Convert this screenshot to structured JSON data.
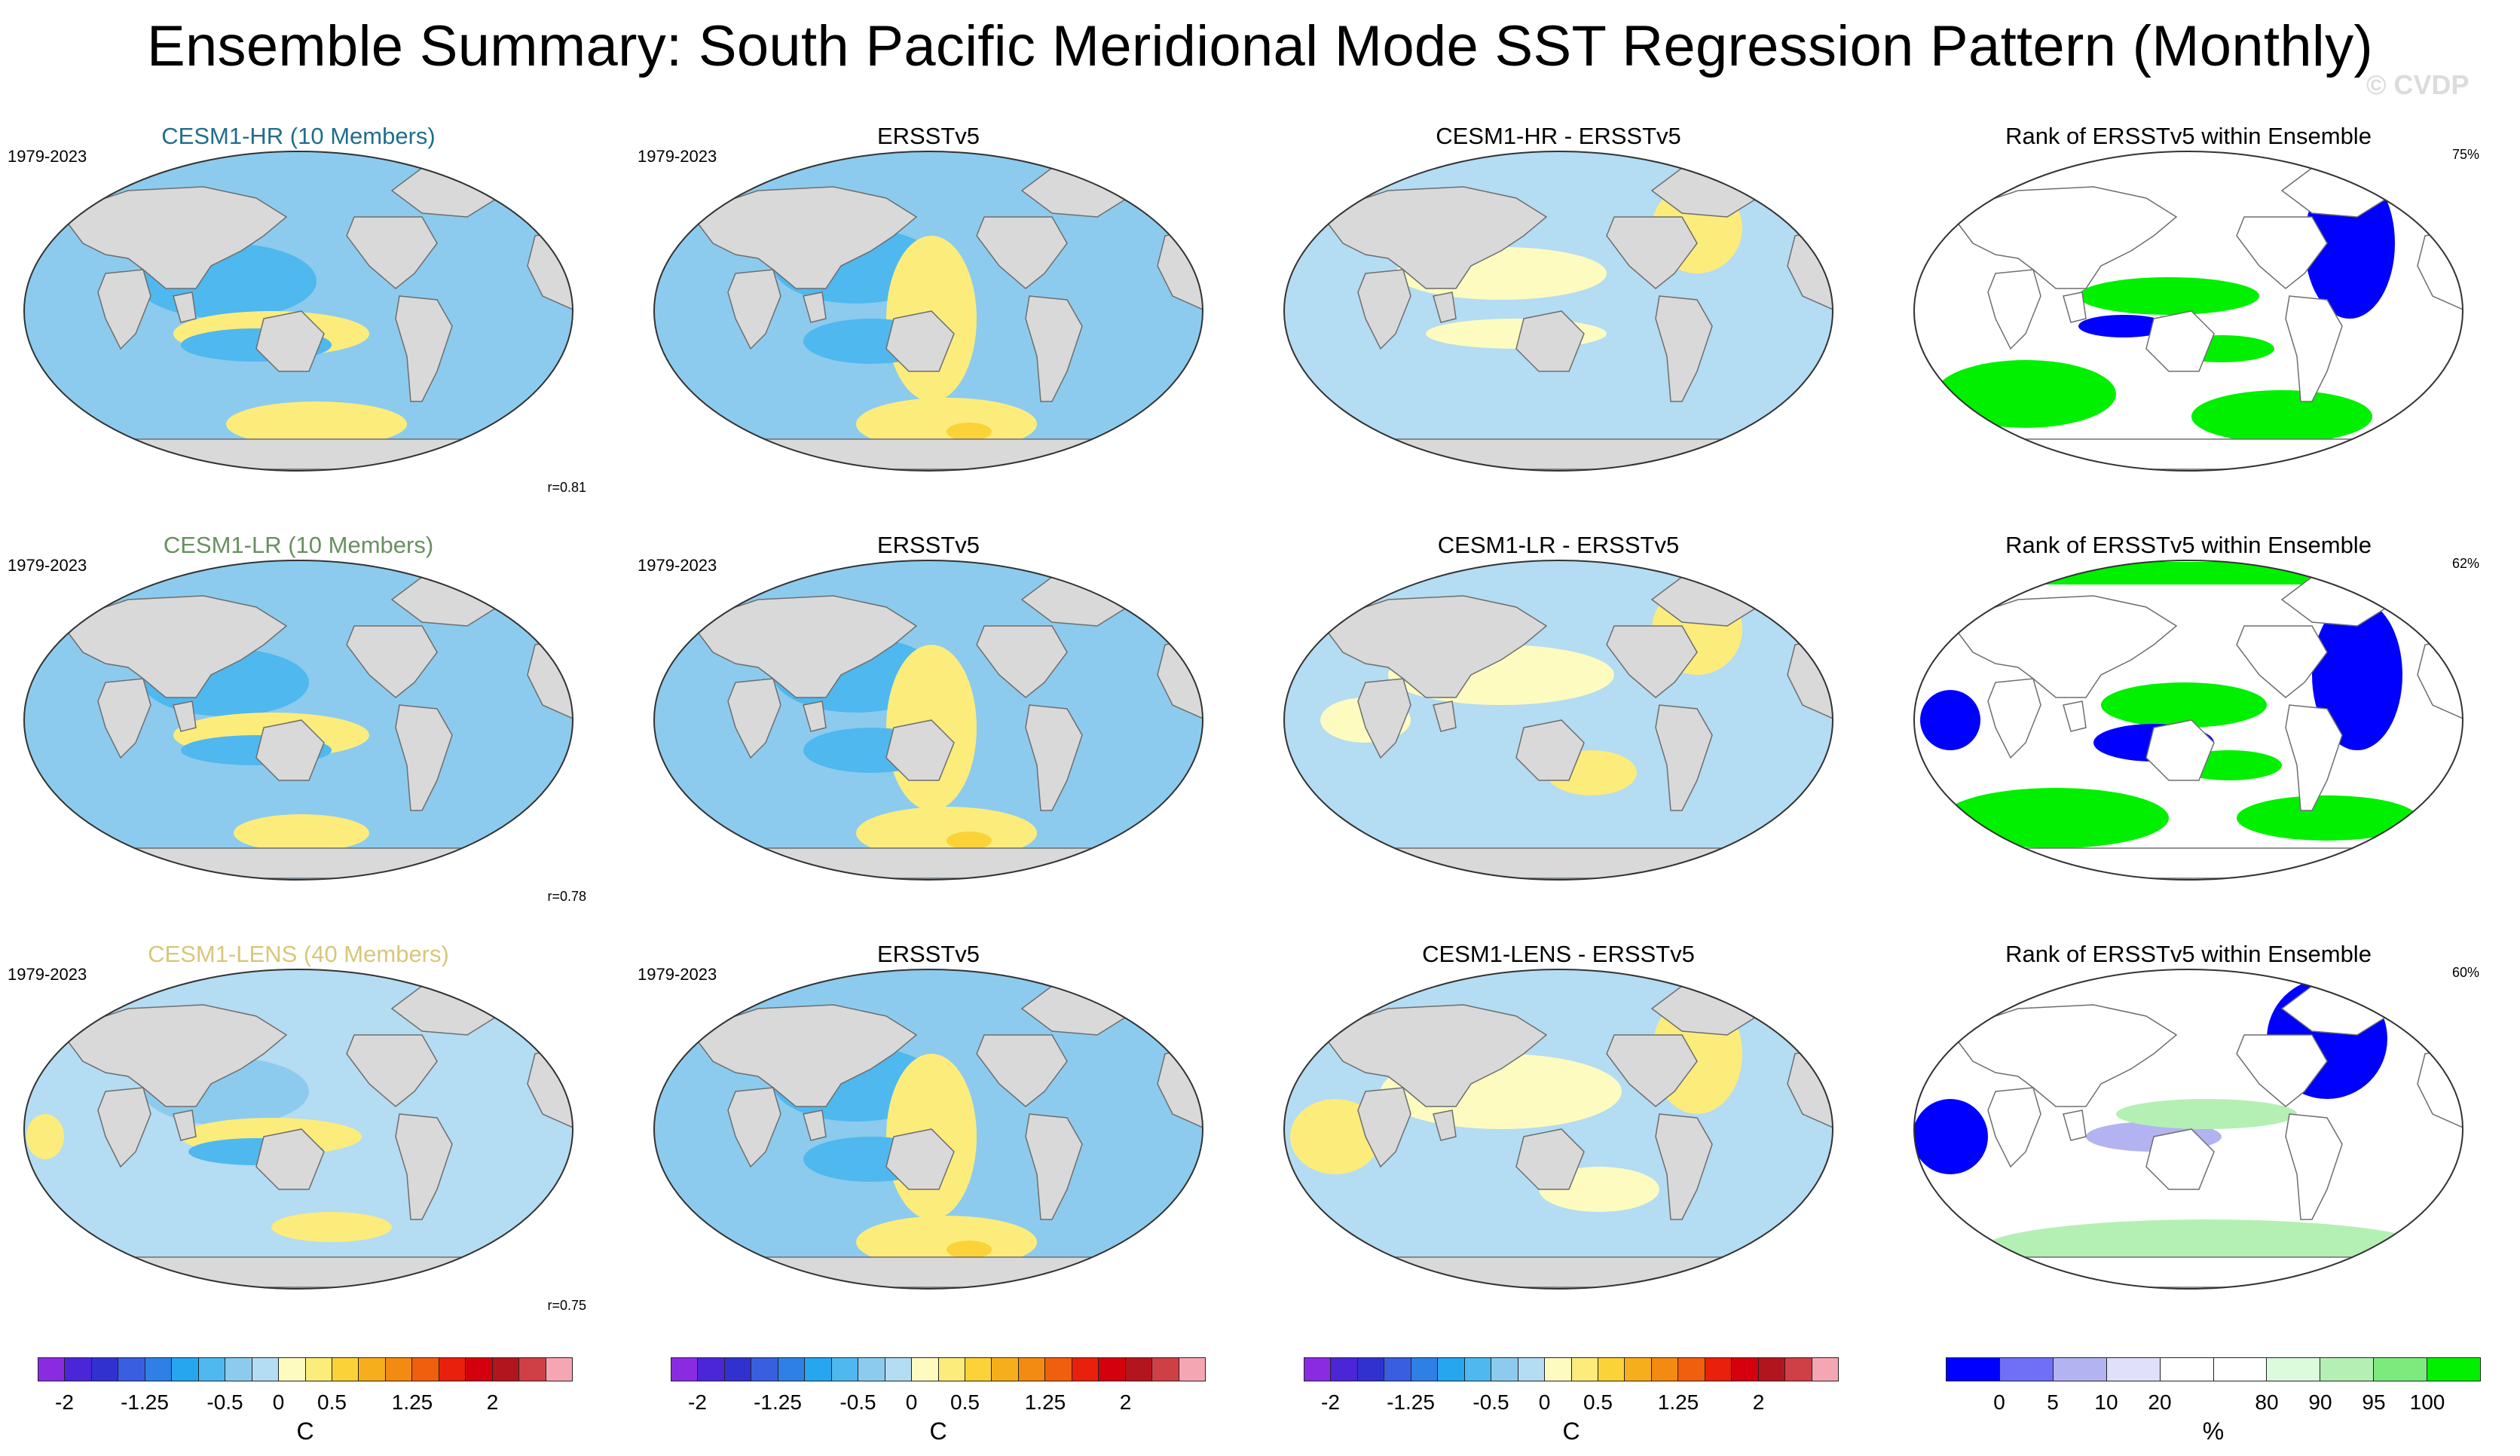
{
  "figure": {
    "title": "Ensemble Summary: South Pacific Meridional Mode SST Regression Pattern (Monthly)",
    "credit": "© CVDP"
  },
  "rows": [
    {
      "ensemble": {
        "title": "CESM1-HR (10 Members)",
        "title_color": "#1f6e8c",
        "years": "1979-2023",
        "r": "r=0.81"
      },
      "obs": {
        "title": "ERSSTv5",
        "years": "1979-2023"
      },
      "diff": {
        "title": "CESM1-HR - ERSSTv5"
      },
      "rank": {
        "title": "Rank of ERSSTv5 within Ensemble",
        "pct": "75%"
      }
    },
    {
      "ensemble": {
        "title": "CESM1-LR (10 Members)",
        "title_color": "#6a8f62",
        "years": "1979-2023",
        "r": "r=0.78"
      },
      "obs": {
        "title": "ERSSTv5",
        "years": "1979-2023"
      },
      "diff": {
        "title": "CESM1-LR - ERSSTv5"
      },
      "rank": {
        "title": "Rank of ERSSTv5 within Ensemble",
        "pct": "62%"
      }
    },
    {
      "ensemble": {
        "title": "CESM1-LENS (40 Members)",
        "title_color": "#d8c77a",
        "years": "1979-2023",
        "r": "r=0.75"
      },
      "obs": {
        "title": "ERSSTv5",
        "years": "1979-2023"
      },
      "diff": {
        "title": "CESM1-LENS - ERSSTv5"
      },
      "rank": {
        "title": "Rank of ERSSTv5 within Ensemble",
        "pct": "60%"
      }
    }
  ],
  "colorbars": {
    "sst": {
      "colors": [
        "#8a2be2",
        "#4b25d8",
        "#3131d0",
        "#3a5ee0",
        "#2f80e6",
        "#27a6f0",
        "#4fb8ee",
        "#8ccbee",
        "#b4dcf2",
        "#fdfbc0",
        "#fcec7c",
        "#fbd338",
        "#f6ae1c",
        "#f38a12",
        "#ef5f0e",
        "#e8200c",
        "#d4000e",
        "#b3151f",
        "#ce4045",
        "#f4a7b2"
      ],
      "ticks": [
        "-2",
        "-1.25",
        "-0.5",
        "0",
        "0.5",
        "1.25",
        "2"
      ],
      "tick_index": [
        1,
        4,
        7,
        9,
        11,
        14,
        17
      ],
      "unit": "C"
    },
    "rank": {
      "colors": [
        "#0000ff",
        "#6f6ff8",
        "#b3b3f2",
        "#e0e0fa",
        "#ffffff",
        "#ffffff",
        "#dcfadc",
        "#b4f0b4",
        "#7cea7c",
        "#00f000"
      ],
      "ticks": [
        "0",
        "5",
        "10",
        "20",
        "80",
        "90",
        "95",
        "100"
      ],
      "tick_index": [
        1,
        2,
        3,
        4,
        6,
        7,
        8,
        9
      ],
      "unit": "%"
    }
  }
}
